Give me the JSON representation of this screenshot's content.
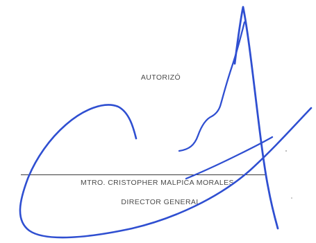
{
  "signature_block": {
    "heading": "AUTORIZÓ",
    "signer_name": "MTRO. CRISTOPHER MALPICA MORALES",
    "signer_title": "DIRECTOR GENERAL"
  },
  "colors": {
    "ink": "#2f4fd1",
    "text": "#4a4a4a",
    "line": "#3a3a3a"
  }
}
